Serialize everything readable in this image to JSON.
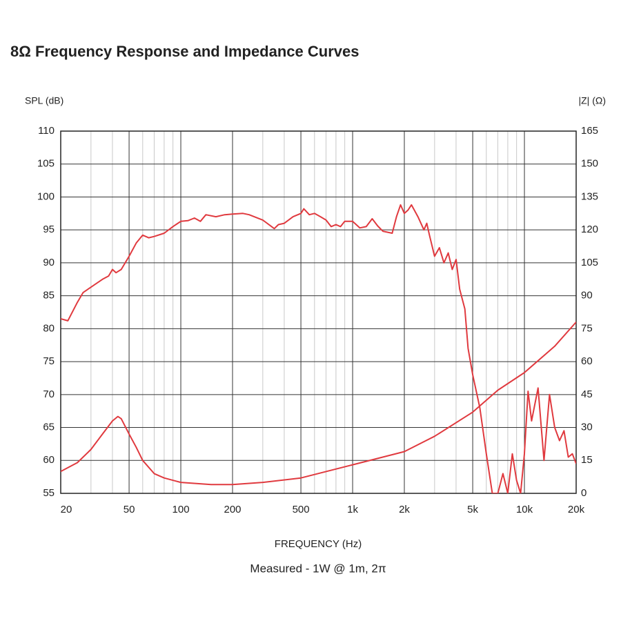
{
  "chart_data": {
    "type": "line",
    "title": "8Ω Frequency Response and Impedance Curves",
    "ylabel": "SPL (dB)",
    "y2label": "|Z| (Ω)",
    "xlabel": "FREQUENCY (Hz)",
    "subtitle": "Measured - 1W @ 1m, 2π",
    "xscale": "log",
    "grid": true,
    "xlim": [
      20,
      20000
    ],
    "xticks": [
      20,
      50,
      100,
      200,
      500,
      {
        "value": 1000,
        "label": "1k"
      },
      {
        "value": 2000,
        "label": "2k"
      },
      {
        "value": 5000,
        "label": "5k"
      },
      {
        "value": 10000,
        "label": "10k"
      },
      {
        "value": 20000,
        "label": "20k"
      }
    ],
    "xminor": [
      30,
      40,
      60,
      70,
      80,
      90,
      300,
      400,
      600,
      700,
      800,
      900,
      3000,
      4000,
      6000,
      7000,
      8000,
      9000
    ],
    "ylim": [
      55,
      110
    ],
    "yticks": [
      55,
      60,
      65,
      70,
      75,
      80,
      85,
      90,
      95,
      100,
      105,
      110
    ],
    "y2lim": [
      0,
      165
    ],
    "y2ticks": [
      0,
      15,
      30,
      45,
      60,
      75,
      90,
      105,
      120,
      135,
      150,
      165
    ],
    "series": [
      {
        "name": "SPL",
        "color": "#e0393e",
        "x": [
          20,
          22,
          25,
          27,
          30,
          35,
          38,
          40,
          42,
          45,
          50,
          55,
          60,
          65,
          70,
          80,
          90,
          100,
          110,
          120,
          130,
          140,
          160,
          180,
          200,
          230,
          250,
          300,
          350,
          370,
          400,
          450,
          500,
          520,
          560,
          600,
          650,
          700,
          750,
          800,
          850,
          900,
          1000,
          1100,
          1200,
          1300,
          1400,
          1500,
          1700,
          1800,
          1900,
          2000,
          2100,
          2200,
          2400,
          2600,
          2700,
          2800,
          3000,
          3200,
          3400,
          3600,
          3800,
          4000,
          4200,
          4500,
          4700,
          5000,
          5500,
          6000,
          6500,
          7000,
          7500,
          8000,
          8500,
          9000,
          9500,
          10000,
          10500,
          11000,
          12000,
          13000,
          14000,
          15000,
          16000,
          17000,
          18000,
          19000,
          20000
        ],
        "values": [
          81.5,
          81.2,
          84,
          85.5,
          86.3,
          87.5,
          88,
          89,
          88.5,
          89,
          91,
          93,
          94.2,
          93.8,
          94,
          94.5,
          95.5,
          96.3,
          96.4,
          96.8,
          96.3,
          97.3,
          97,
          97.3,
          97.4,
          97.5,
          97.3,
          96.5,
          95.2,
          95.8,
          96,
          97,
          97.5,
          98.2,
          97.3,
          97.5,
          97,
          96.5,
          95.5,
          95.8,
          95.5,
          96.3,
          96.3,
          95.3,
          95.5,
          96.7,
          95.6,
          94.8,
          94.5,
          97,
          98.8,
          97.5,
          98,
          98.8,
          97,
          95,
          96,
          94.2,
          91,
          92.3,
          90,
          91.5,
          89,
          90.5,
          86,
          83,
          77,
          73,
          68,
          61,
          55,
          55,
          58,
          55,
          61,
          57,
          55,
          61,
          70.5,
          66,
          71,
          60,
          70,
          65,
          63,
          64.5,
          60.5,
          61,
          59.5
        ]
      },
      {
        "name": "Impedance",
        "color": "#e0393e",
        "axis": "y2",
        "x": [
          20,
          25,
          30,
          35,
          40,
          43,
          45,
          50,
          55,
          60,
          70,
          80,
          100,
          150,
          200,
          300,
          500,
          1000,
          2000,
          3000,
          5000,
          7000,
          10000,
          15000,
          20000
        ],
        "values": [
          10,
          14,
          20,
          27,
          33,
          35,
          34,
          27,
          21,
          15,
          9,
          7,
          5,
          4,
          4,
          5,
          7,
          13,
          19,
          26,
          37,
          47,
          55,
          67,
          78
        ]
      }
    ]
  }
}
